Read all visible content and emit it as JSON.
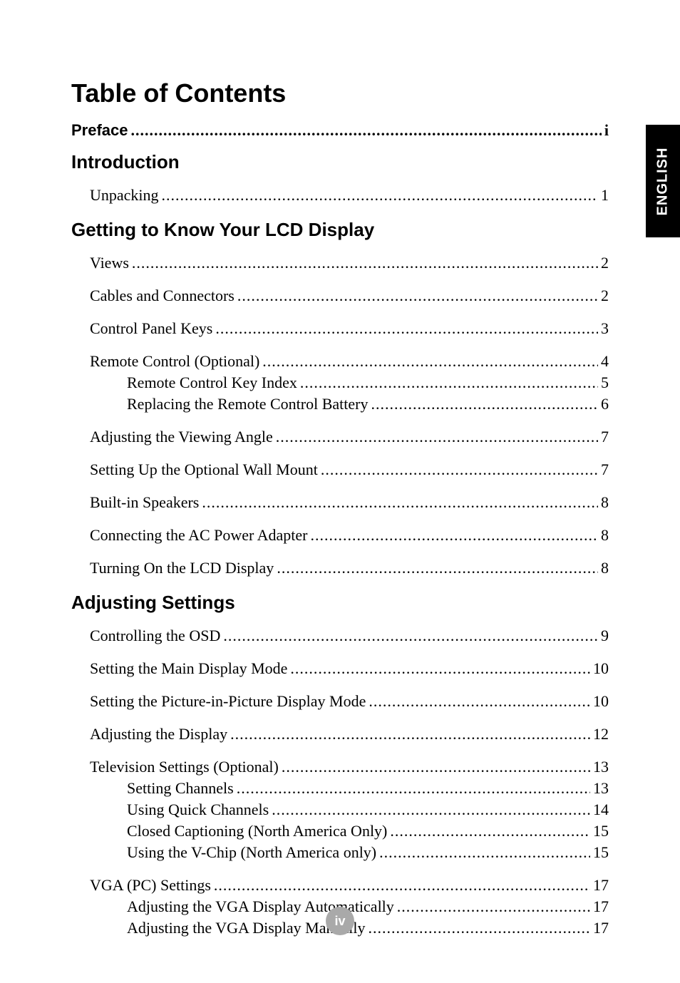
{
  "page": {
    "side_tab": "ENGLISH",
    "main_title": "Table of Contents",
    "page_number": "iv"
  },
  "toc": {
    "preface": {
      "label": "Preface",
      "page": "i"
    },
    "sections": [
      {
        "heading": "Introduction",
        "items": [
          {
            "label": "Unpacking",
            "page": "1",
            "style": "level-1"
          }
        ]
      },
      {
        "heading": "Getting to Know Your LCD Display",
        "items": [
          {
            "label": "Views",
            "page": "2",
            "style": "level-1"
          },
          {
            "label": "Cables and Connectors",
            "page": "2",
            "style": "level-1"
          },
          {
            "label": "Control Panel Keys",
            "page": "3",
            "style": "level-1"
          },
          {
            "label": "Remote Control (Optional)",
            "page": "4",
            "style": "level-1-tight"
          },
          {
            "label": "Remote Control Key Index",
            "page": "5",
            "style": "level-2"
          },
          {
            "label": "Replacing the Remote Control Battery",
            "page": "6",
            "style": "level-2-last"
          },
          {
            "label": "Adjusting the Viewing Angle",
            "page": "7",
            "style": "level-1"
          },
          {
            "label": "Setting Up the Optional Wall Mount",
            "page": "7",
            "style": "level-1"
          },
          {
            "label": "Built-in Speakers",
            "page": "8",
            "style": "level-1"
          },
          {
            "label": "Connecting the AC Power Adapter",
            "page": "8",
            "style": "level-1"
          },
          {
            "label": "Turning On the LCD Display",
            "page": "8",
            "style": "level-1"
          }
        ]
      },
      {
        "heading": "Adjusting Settings",
        "items": [
          {
            "label": "Controlling the OSD",
            "page": "9",
            "style": "level-1"
          },
          {
            "label": "Setting the Main Display Mode",
            "page": "10",
            "style": "level-1"
          },
          {
            "label": "Setting the Picture-in-Picture Display Mode",
            "page": "10",
            "style": "level-1"
          },
          {
            "label": "Adjusting the Display",
            "page": "12",
            "style": "level-1"
          },
          {
            "label": "Television Settings (Optional)",
            "page": "13",
            "style": "level-1-tight"
          },
          {
            "label": "Setting Channels",
            "page": "13",
            "style": "level-2"
          },
          {
            "label": "Using Quick Channels",
            "page": "14",
            "style": "level-2"
          },
          {
            "label": "Closed Captioning (North America Only)",
            "page": "15",
            "style": "level-2"
          },
          {
            "label": "Using the V-Chip (North America only)",
            "page": "15",
            "style": "level-2-last"
          },
          {
            "label": "VGA (PC) Settings",
            "page": "17",
            "style": "level-1-tight"
          },
          {
            "label": "Adjusting the VGA Display Automatically",
            "page": "17",
            "style": "level-2"
          },
          {
            "label": "Adjusting the VGA Display Manually",
            "page": "17",
            "style": "level-2"
          }
        ]
      }
    ]
  },
  "colors": {
    "text": "#000000",
    "background": "#ffffff",
    "tab_bg": "#000000",
    "tab_text": "#ffffff",
    "badge_bg": "#a9a9a9",
    "badge_text": "#ffffff"
  },
  "typography": {
    "title_font": "Arial",
    "body_font": "Times New Roman",
    "title_size_pt": 28,
    "section_size_pt": 20,
    "entry_size_pt": 16
  }
}
